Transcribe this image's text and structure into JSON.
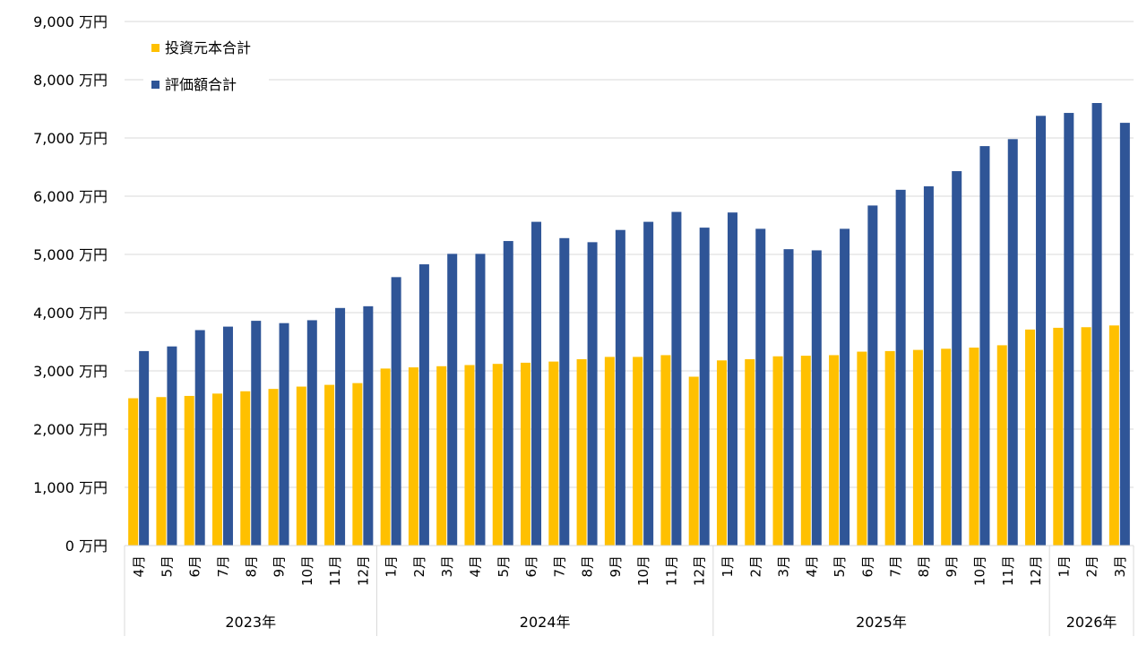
{
  "chart_data": {
    "type": "bar",
    "title": "",
    "xlabel": "",
    "ylabel": "",
    "y_unit_suffix": " 万円",
    "ylim": [
      0,
      9000
    ],
    "yticks": [
      0,
      1000,
      2000,
      3000,
      4000,
      5000,
      6000,
      7000,
      8000,
      9000
    ],
    "ytick_labels": [
      "0 万円",
      "1,000 万円",
      "2,000 万円",
      "3,000 万円",
      "4,000 万円",
      "5,000 万円",
      "6,000 万円",
      "7,000 万円",
      "8,000 万円",
      "9,000 万円"
    ],
    "grid": true,
    "legend_position": "top-left",
    "categories": [
      "4月",
      "5月",
      "6月",
      "7月",
      "8月",
      "9月",
      "10月",
      "11月",
      "12月",
      "1月",
      "2月",
      "3月",
      "4月",
      "5月",
      "6月",
      "7月",
      "8月",
      "9月",
      "10月",
      "11月",
      "12月",
      "1月",
      "2月",
      "3月",
      "4月",
      "5月",
      "6月",
      "7月",
      "8月",
      "9月",
      "10月",
      "11月",
      "12月",
      "1月",
      "2月",
      "3月"
    ],
    "groups": [
      {
        "label": "2023年",
        "count": 9
      },
      {
        "label": "2024年",
        "count": 12
      },
      {
        "label": "2025年",
        "count": 12
      },
      {
        "label": "2026年",
        "count": 3
      }
    ],
    "series": [
      {
        "name": "投資元本合計",
        "color": "#FFC000",
        "values": [
          2530,
          2550,
          2570,
          2610,
          2650,
          2690,
          2730,
          2760,
          2790,
          3040,
          3060,
          3080,
          3100,
          3120,
          3140,
          3160,
          3200,
          3240,
          3240,
          3270,
          2900,
          3180,
          3200,
          3250,
          3260,
          3270,
          3330,
          3340,
          3360,
          3380,
          3400,
          3440,
          3710,
          3740,
          3750,
          3780
        ]
      },
      {
        "name": "評価額合計",
        "color": "#2F5597",
        "values": [
          3340,
          3420,
          3700,
          3760,
          3860,
          3820,
          3870,
          4080,
          4110,
          4610,
          4830,
          5010,
          5010,
          5230,
          5560,
          5280,
          5210,
          5420,
          5560,
          5730,
          5460,
          5720,
          5440,
          5090,
          5070,
          5440,
          5840,
          6110,
          6170,
          6430,
          6860,
          6980,
          7380,
          7430,
          7600,
          7260
        ]
      }
    ]
  }
}
